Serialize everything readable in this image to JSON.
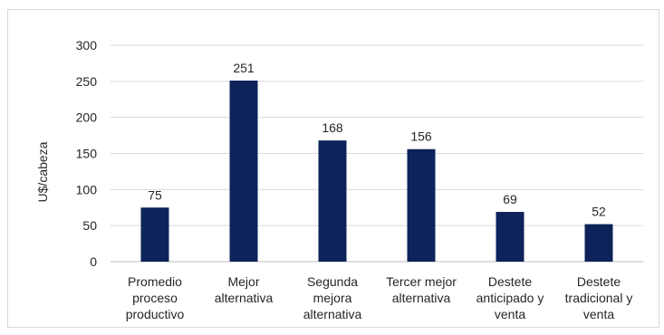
{
  "chart_data": {
    "type": "bar",
    "categories": [
      [
        "Promedio",
        "proceso",
        "productivo"
      ],
      [
        "Mejor",
        "alternativa"
      ],
      [
        "Segunda",
        "mejora",
        "alternativa"
      ],
      [
        "Tercer mejor",
        "alternativa"
      ],
      [
        "Destete",
        "anticipado y",
        "venta"
      ],
      [
        "Destete",
        "tradicional y",
        "venta"
      ]
    ],
    "values": [
      75,
      251,
      168,
      156,
      69,
      52
    ],
    "data_labels": [
      "75",
      "251",
      "168",
      "156",
      "69",
      "52"
    ],
    "title": "",
    "xlabel": "",
    "ylabel": "U$/cabeza",
    "ylim": [
      0,
      300
    ],
    "yticks": [
      0,
      50,
      100,
      150,
      200,
      250,
      300
    ],
    "grid": "horizontal",
    "legend": "none",
    "bar_color": "#0d2359",
    "grid_color": "#d9d9d9"
  }
}
